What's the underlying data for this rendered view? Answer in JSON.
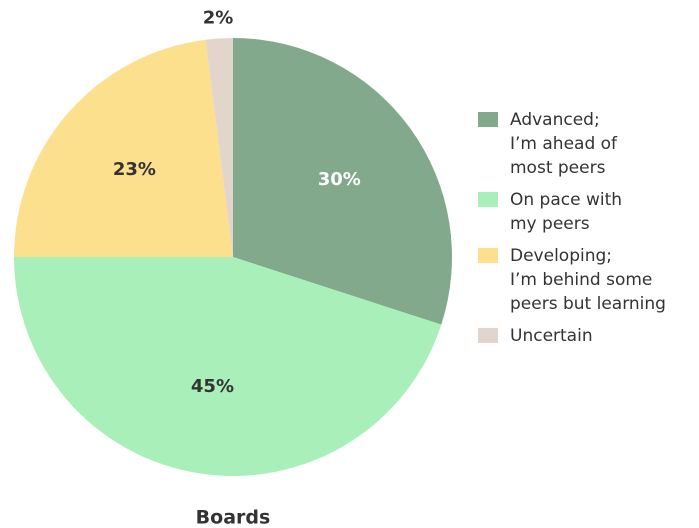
{
  "chart_data": {
    "type": "pie",
    "title": "Boards",
    "categories": [
      "Advanced;\nI’m ahead of\nmost peers",
      "On pace with\nmy peers",
      "Developing;\nI’m behind some\npeers but learning",
      "Uncertain"
    ],
    "values": [
      30,
      45,
      23,
      2
    ],
    "value_labels": [
      "30%",
      "45%",
      "23%",
      "2%"
    ],
    "colors": [
      "#82a98b",
      "#a8efb9",
      "#fde08d",
      "#e2d6cc"
    ],
    "legend": "right"
  }
}
